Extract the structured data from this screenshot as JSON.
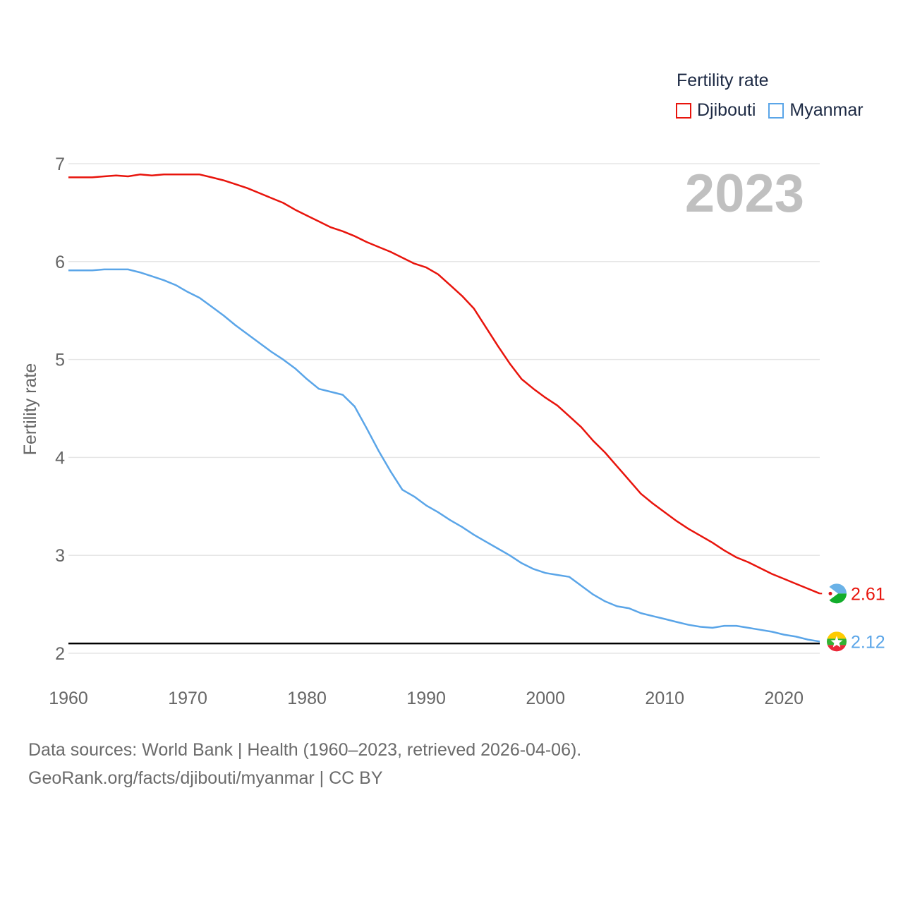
{
  "legend": {
    "title": "Fertility rate",
    "items": [
      {
        "label": "Djibouti",
        "color": "#e8140c"
      },
      {
        "label": "Myanmar",
        "color": "#5aa5e8"
      }
    ]
  },
  "footer": {
    "line1": "Data sources: World Bank | Health (1960–2023, retrieved 2026-04-06).",
    "line2": "GeoRank.org/facts/djibouti/myanmar | CC BY"
  },
  "chart_data": {
    "type": "line",
    "year_label": "2023",
    "ylabel": "Fertility rate",
    "xlabel": "",
    "xlim": [
      1960,
      2023
    ],
    "ylim": [
      2,
      7
    ],
    "x_ticks": [
      1960,
      1970,
      1980,
      1990,
      2000,
      2010,
      2020
    ],
    "y_ticks": [
      2,
      3,
      4,
      5,
      6,
      7
    ],
    "reference_line": 2.1,
    "x": [
      1960,
      1961,
      1962,
      1963,
      1964,
      1965,
      1966,
      1967,
      1968,
      1969,
      1970,
      1971,
      1972,
      1973,
      1974,
      1975,
      1976,
      1977,
      1978,
      1979,
      1980,
      1981,
      1982,
      1983,
      1984,
      1985,
      1986,
      1987,
      1988,
      1989,
      1990,
      1991,
      1992,
      1993,
      1994,
      1995,
      1996,
      1997,
      1998,
      1999,
      2000,
      2001,
      2002,
      2003,
      2004,
      2005,
      2006,
      2007,
      2008,
      2009,
      2010,
      2011,
      2012,
      2013,
      2014,
      2015,
      2016,
      2017,
      2018,
      2019,
      2020,
      2021,
      2022,
      2023
    ],
    "series": [
      {
        "name": "Djibouti",
        "color": "#e8140c",
        "end_label": "2.61",
        "values": [
          6.86,
          6.86,
          6.86,
          6.87,
          6.88,
          6.87,
          6.89,
          6.88,
          6.89,
          6.89,
          6.89,
          6.89,
          6.86,
          6.83,
          6.79,
          6.75,
          6.7,
          6.65,
          6.6,
          6.53,
          6.47,
          6.41,
          6.35,
          6.31,
          6.26,
          6.2,
          6.15,
          6.1,
          6.04,
          5.98,
          5.94,
          5.87,
          5.76,
          5.65,
          5.52,
          5.33,
          5.14,
          4.96,
          4.8,
          4.7,
          4.61,
          4.53,
          4.42,
          4.31,
          4.17,
          4.05,
          3.91,
          3.77,
          3.63,
          3.53,
          3.44,
          3.35,
          3.27,
          3.2,
          3.13,
          3.05,
          2.98,
          2.93,
          2.87,
          2.81,
          2.76,
          2.71,
          2.66,
          2.61
        ]
      },
      {
        "name": "Myanmar",
        "color": "#5aa5e8",
        "end_label": "2.12",
        "values": [
          5.91,
          5.91,
          5.91,
          5.92,
          5.92,
          5.92,
          5.89,
          5.85,
          5.81,
          5.76,
          5.69,
          5.63,
          5.54,
          5.45,
          5.35,
          5.26,
          5.17,
          5.08,
          5.0,
          4.91,
          4.8,
          4.7,
          4.67,
          4.64,
          4.52,
          4.3,
          4.07,
          3.86,
          3.67,
          3.6,
          3.51,
          3.44,
          3.36,
          3.29,
          3.21,
          3.14,
          3.07,
          3.0,
          2.92,
          2.86,
          2.82,
          2.8,
          2.78,
          2.69,
          2.6,
          2.53,
          2.48,
          2.46,
          2.41,
          2.38,
          2.35,
          2.32,
          2.29,
          2.27,
          2.26,
          2.28,
          2.28,
          2.26,
          2.24,
          2.22,
          2.19,
          2.17,
          2.14,
          2.12
        ]
      }
    ]
  }
}
